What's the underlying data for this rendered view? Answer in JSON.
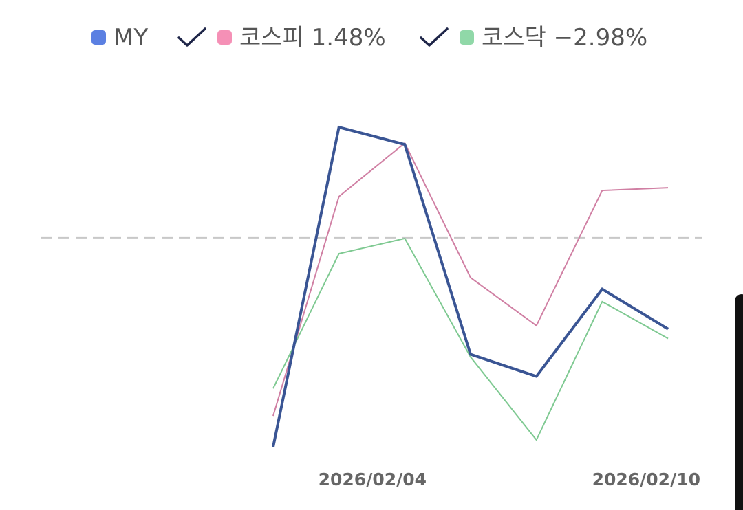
{
  "chart_data": {
    "type": "line",
    "categories": [
      null,
      null,
      "2026/02/04",
      null,
      null,
      null,
      "2026/02/10"
    ],
    "series": [
      {
        "name": "MY",
        "color": "#3a5594",
        "marker_color": "#5b80e2",
        "values": [
          -6.19,
          3.27,
          2.76,
          -3.45,
          -4.1,
          -1.52,
          -2.7
        ]
      },
      {
        "name": "코스피 1.48%",
        "color": "#d07fa3",
        "marker_color": "#f590b6",
        "values": [
          -5.27,
          1.22,
          2.8,
          -1.18,
          -2.6,
          1.4,
          1.48
        ]
      },
      {
        "name": "코스닥 −2.98%",
        "color": "#7ec991",
        "marker_color": "#90d8a8",
        "values": [
          -4.46,
          -0.47,
          -0.02,
          -3.53,
          -5.98,
          -1.89,
          -2.98
        ]
      }
    ],
    "ylim": [
      -7.2,
      5
    ],
    "baseline": 0
  }
}
